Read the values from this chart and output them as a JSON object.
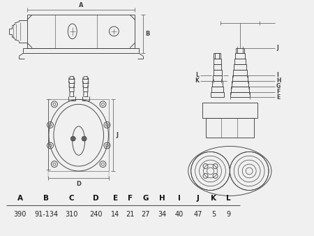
{
  "bg_color": "#f0f0f0",
  "fg_color": "#404040",
  "dim_color": "#505050",
  "table_headers": [
    "A",
    "B",
    "C",
    "D",
    "E",
    "F",
    "G",
    "H",
    "I",
    "J",
    "K",
    "L"
  ],
  "table_values": [
    "390",
    "91-134",
    "310",
    "240",
    "14",
    "21",
    "27",
    "34",
    "40",
    "47",
    "5",
    "9"
  ],
  "col_positions": [
    10,
    45,
    85,
    118,
    155,
    175,
    197,
    220,
    244,
    270,
    298,
    316,
    340
  ]
}
